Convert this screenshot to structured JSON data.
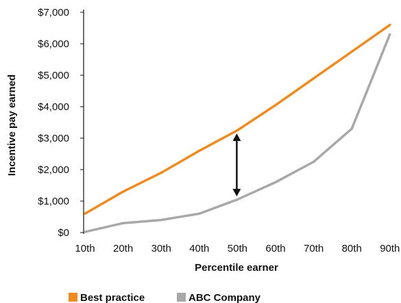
{
  "chart_data": {
    "type": "line",
    "title": "",
    "xlabel": "Percentile earner",
    "ylabel": "Incentive pay earned",
    "categories": [
      "10th",
      "20th",
      "30th",
      "40th",
      "50th",
      "60th",
      "70th",
      "80th",
      "90th"
    ],
    "yticks": [
      "$0",
      "$1,000",
      "$2,000",
      "$3,000",
      "$4,000",
      "$5,000",
      "$6,000",
      "$7,000"
    ],
    "ylim": [
      0,
      7000
    ],
    "grid": false,
    "legend_position": "bottom",
    "series": [
      {
        "name": "Best practice",
        "color": "#f08a1c",
        "values": [
          600,
          1300,
          1900,
          2600,
          3250,
          4050,
          4900,
          5750,
          6600
        ]
      },
      {
        "name": "ABC Company",
        "color": "#a8a8a8",
        "values": [
          20,
          300,
          400,
          600,
          1050,
          1600,
          2250,
          3300,
          6300
        ]
      }
    ],
    "annotation": {
      "type": "double-arrow",
      "category": "50th",
      "from": 1150,
      "to": 3150,
      "color": "#111111"
    }
  }
}
